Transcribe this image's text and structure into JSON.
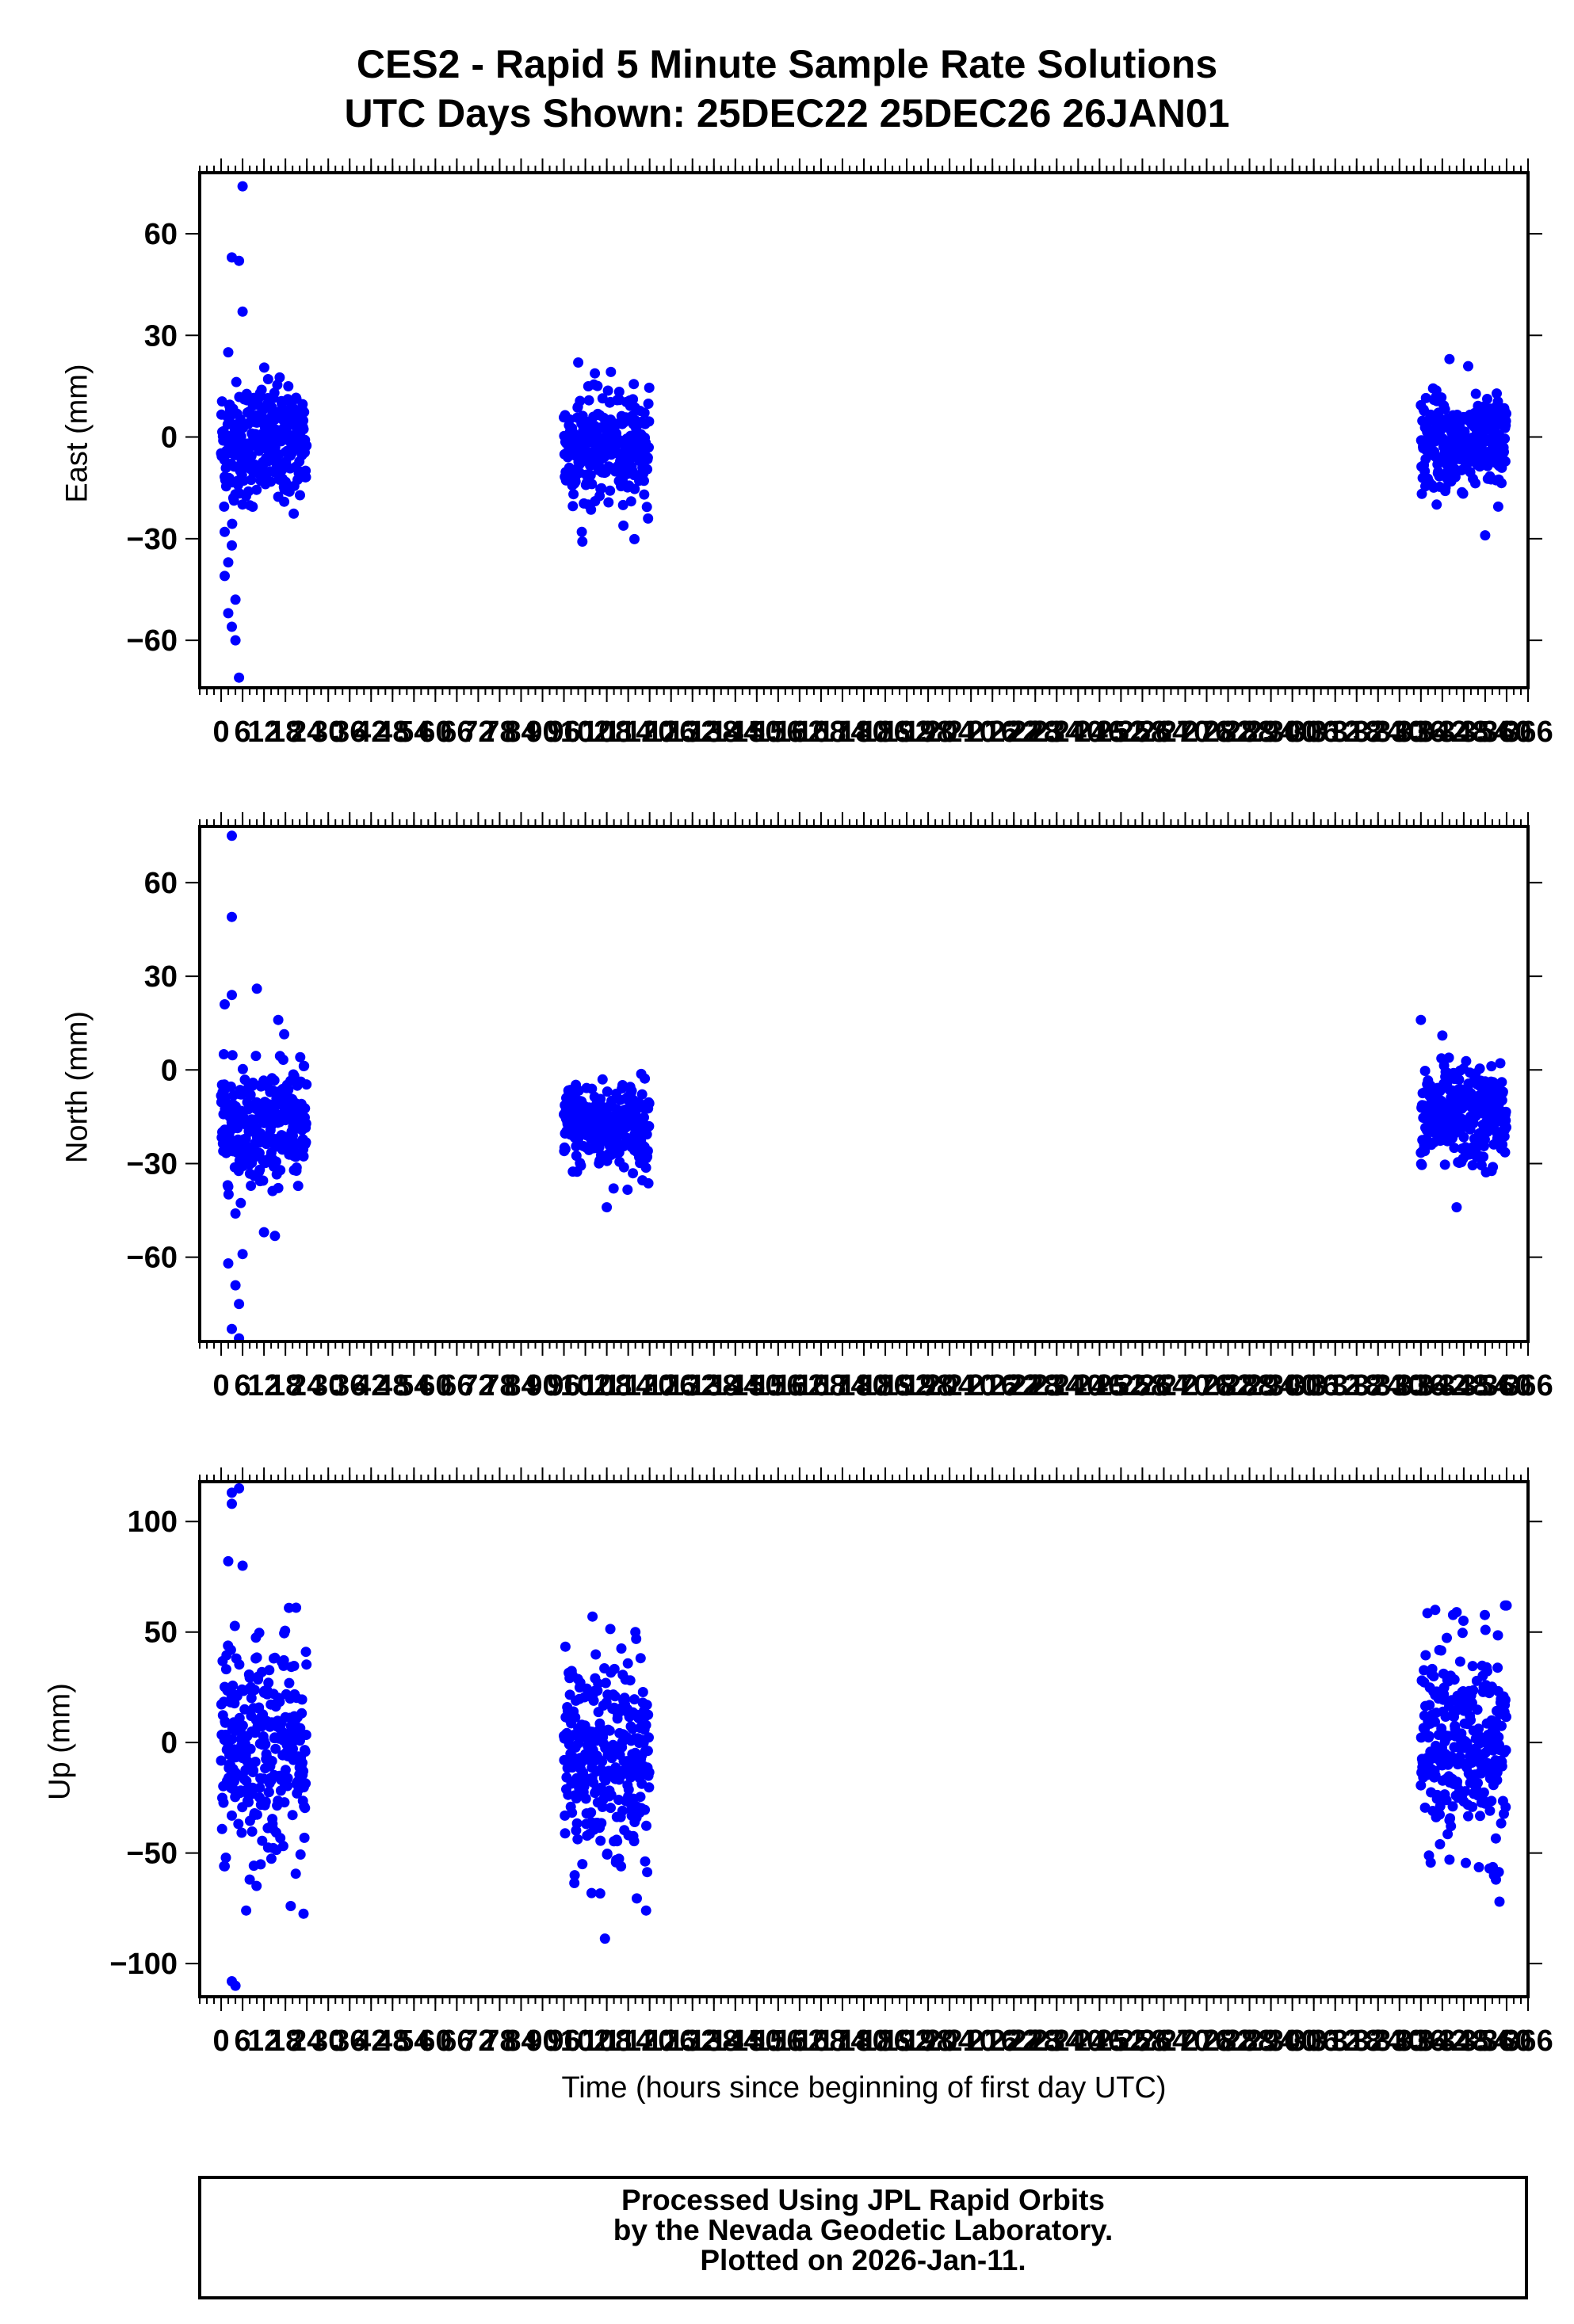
{
  "title_line1": "CES2 - Rapid 5 Minute Sample Rate Solutions",
  "title_line2": "UTC Days Shown:  25DEC22 25DEC26 26JAN01",
  "xlabel": "Time (hours since beginning of first day UTC)",
  "footer": {
    "line1": "Processed Using JPL Rapid Orbits",
    "line2": "by the Nevada Geodetic Laboratory.",
    "line3": "Plotted on 2026-Jan-11."
  },
  "chart_data": [
    {
      "type": "scatter",
      "ylabel": "East (mm)",
      "color": "#0000ff",
      "xlim": [
        -6,
        366
      ],
      "ylim": [
        -74,
        78
      ],
      "yticks": [
        -60,
        -30,
        0,
        30,
        60
      ],
      "xticks": [
        0,
        6,
        12,
        18,
        24,
        30,
        36,
        42,
        48,
        54,
        60,
        66,
        72,
        78,
        84,
        90,
        96,
        102,
        108,
        114,
        120,
        126,
        132,
        138,
        144,
        150,
        156,
        162,
        168,
        174,
        180,
        186,
        192,
        198,
        204,
        210,
        216,
        222,
        228,
        234,
        240,
        246,
        252,
        258,
        264,
        270,
        276,
        282,
        288,
        294,
        300,
        306,
        312,
        318,
        324,
        330,
        336,
        342,
        348,
        354,
        360,
        366
      ],
      "segments": [
        {
          "x_start": 0,
          "x_end": 23.9,
          "mean": -2,
          "spread": 9
        },
        {
          "x_start": 96,
          "x_end": 119.9,
          "mean": -3,
          "spread": 8
        },
        {
          "x_start": 336,
          "x_end": 359.9,
          "mean": -2,
          "spread": 7
        }
      ],
      "outliers": [
        {
          "x": 3,
          "y": 53
        },
        {
          "x": 5,
          "y": 52
        },
        {
          "x": 6,
          "y": 74
        },
        {
          "x": 6,
          "y": 37
        },
        {
          "x": 2,
          "y": 25
        },
        {
          "x": 1,
          "y": -41
        },
        {
          "x": 2,
          "y": -52
        },
        {
          "x": 3,
          "y": -56
        },
        {
          "x": 4,
          "y": -60
        },
        {
          "x": 5,
          "y": -71
        },
        {
          "x": 4,
          "y": -48
        },
        {
          "x": 2,
          "y": -37
        },
        {
          "x": 3,
          "y": -32
        },
        {
          "x": 1,
          "y": -28
        },
        {
          "x": 101,
          "y": -28
        },
        {
          "x": 100,
          "y": 22
        },
        {
          "x": 354,
          "y": -29
        },
        {
          "x": 344,
          "y": 23
        }
      ]
    },
    {
      "type": "scatter",
      "ylabel": "North (mm)",
      "color": "#0000ff",
      "xlim": [
        -6,
        366
      ],
      "ylim": [
        -87,
        78
      ],
      "yticks": [
        -60,
        -30,
        0,
        30,
        60
      ],
      "xticks": [
        0,
        6,
        12,
        18,
        24,
        30,
        36,
        42,
        48,
        54,
        60,
        66,
        72,
        78,
        84,
        90,
        96,
        102,
        108,
        114,
        120,
        126,
        132,
        138,
        144,
        150,
        156,
        162,
        168,
        174,
        180,
        186,
        192,
        198,
        204,
        210,
        216,
        222,
        228,
        234,
        240,
        246,
        252,
        258,
        264,
        270,
        276,
        282,
        288,
        294,
        300,
        306,
        312,
        318,
        324,
        330,
        336,
        342,
        348,
        354,
        360,
        366
      ],
      "segments": [
        {
          "x_start": 0,
          "x_end": 23.9,
          "mean": -17,
          "spread": 9
        },
        {
          "x_start": 96,
          "x_end": 119.9,
          "mean": -18,
          "spread": 7
        },
        {
          "x_start": 336,
          "x_end": 359.9,
          "mean": -15,
          "spread": 8
        }
      ],
      "outliers": [
        {
          "x": 3,
          "y": 75
        },
        {
          "x": 3,
          "y": 49
        },
        {
          "x": 1,
          "y": 21
        },
        {
          "x": 3,
          "y": 24
        },
        {
          "x": 10,
          "y": 26
        },
        {
          "x": 16,
          "y": 16
        },
        {
          "x": 2,
          "y": -62
        },
        {
          "x": 4,
          "y": -69
        },
        {
          "x": 5,
          "y": -75
        },
        {
          "x": 3,
          "y": -83
        },
        {
          "x": 5,
          "y": -86
        },
        {
          "x": 6,
          "y": -59
        },
        {
          "x": 4,
          "y": -46
        },
        {
          "x": 12,
          "y": -52
        },
        {
          "x": 342,
          "y": 11
        },
        {
          "x": 336,
          "y": 16
        },
        {
          "x": 108,
          "y": -44
        },
        {
          "x": 346,
          "y": -44
        }
      ]
    },
    {
      "type": "scatter",
      "ylabel": "Up (mm)",
      "color": "#0000ff",
      "xlim": [
        -6,
        366
      ],
      "ylim": [
        -115,
        118
      ],
      "yticks": [
        -100,
        -50,
        0,
        50,
        100
      ],
      "xticks": [
        0,
        6,
        12,
        18,
        24,
        30,
        36,
        42,
        48,
        54,
        60,
        66,
        72,
        78,
        84,
        90,
        96,
        102,
        108,
        114,
        120,
        126,
        132,
        138,
        144,
        150,
        156,
        162,
        168,
        174,
        180,
        186,
        192,
        198,
        204,
        210,
        216,
        222,
        228,
        234,
        240,
        246,
        252,
        258,
        264,
        270,
        276,
        282,
        288,
        294,
        300,
        306,
        312,
        318,
        324,
        330,
        336,
        342,
        348,
        354,
        360,
        366
      ],
      "segments": [
        {
          "x_start": 0,
          "x_end": 23.9,
          "mean": -2,
          "spread": 24
        },
        {
          "x_start": 96,
          "x_end": 119.9,
          "mean": -6,
          "spread": 22
        },
        {
          "x_start": 336,
          "x_end": 359.9,
          "mean": -2,
          "spread": 22
        }
      ],
      "outliers": [
        {
          "x": 3,
          "y": 113
        },
        {
          "x": 5,
          "y": 115
        },
        {
          "x": 3,
          "y": 108
        },
        {
          "x": 2,
          "y": 82
        },
        {
          "x": 6,
          "y": 80
        },
        {
          "x": 1,
          "y": -56
        },
        {
          "x": 7,
          "y": -76
        },
        {
          "x": 8,
          "y": -62
        },
        {
          "x": 3,
          "y": -108
        },
        {
          "x": 4,
          "y": -110
        },
        {
          "x": 21,
          "y": 61
        },
        {
          "x": 104,
          "y": 57
        },
        {
          "x": 116,
          "y": 50
        },
        {
          "x": 119,
          "y": -76
        },
        {
          "x": 112,
          "y": -56
        },
        {
          "x": 340,
          "y": 60
        },
        {
          "x": 346,
          "y": 59
        },
        {
          "x": 344,
          "y": -53
        },
        {
          "x": 360,
          "y": 62
        },
        {
          "x": 357,
          "y": -62
        },
        {
          "x": 358,
          "y": -72
        },
        {
          "x": 99,
          "y": -60
        }
      ]
    }
  ]
}
